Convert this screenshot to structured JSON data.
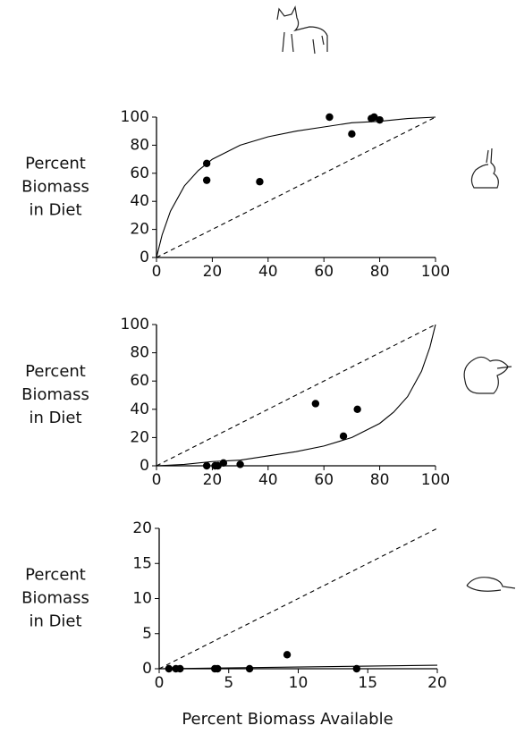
{
  "chart_data": [
    {
      "type": "scatter",
      "ylabel": [
        "Percent",
        "Biomass",
        "in Diet"
      ],
      "xlim": [
        0,
        100
      ],
      "ylim": [
        0,
        100
      ],
      "xticks": [
        0,
        20,
        40,
        60,
        80,
        100
      ],
      "yticks": [
        0,
        20,
        40,
        60,
        80,
        100
      ],
      "series": [
        {
          "style": "markers",
          "color": "#000",
          "x": [
            18,
            18,
            37,
            62,
            70,
            77,
            78,
            80
          ],
          "values": [
            67,
            55,
            54,
            100,
            88,
            99,
            100,
            98
          ]
        },
        {
          "style": "solid",
          "color": "#000",
          "x": [
            0,
            2,
            5,
            10,
            15,
            20,
            30,
            40,
            50,
            60,
            70,
            80,
            90,
            100
          ],
          "values": [
            0,
            16,
            33,
            51,
            62,
            70,
            80,
            86,
            90,
            93,
            96,
            97,
            99,
            100
          ]
        },
        {
          "style": "dashed",
          "color": "#000",
          "x": [
            0,
            100
          ],
          "values": [
            0,
            100
          ]
        }
      ]
    },
    {
      "type": "scatter",
      "ylabel": [
        "Percent",
        "Biomass",
        "in Diet"
      ],
      "xlim": [
        0,
        100
      ],
      "ylim": [
        0,
        100
      ],
      "xticks": [
        0,
        20,
        40,
        60,
        80,
        100
      ],
      "yticks": [
        0,
        20,
        40,
        60,
        80,
        100
      ],
      "series": [
        {
          "style": "markers",
          "color": "#000",
          "x": [
            18,
            21,
            22,
            24,
            30,
            57,
            67,
            72
          ],
          "values": [
            0,
            0,
            0,
            2,
            1,
            44,
            21,
            40
          ]
        },
        {
          "style": "solid",
          "color": "#000",
          "x": [
            0,
            10,
            20,
            30,
            40,
            50,
            60,
            70,
            80,
            85,
            90,
            95,
            98,
            100
          ],
          "values": [
            0,
            1,
            3,
            4,
            7,
            10,
            14,
            20,
            30,
            38,
            49,
            67,
            84,
            100
          ]
        },
        {
          "style": "dashed",
          "color": "#000",
          "x": [
            0,
            100
          ],
          "values": [
            0,
            100
          ]
        }
      ]
    },
    {
      "type": "scatter",
      "ylabel": [
        "Percent",
        "Biomass",
        "in Diet"
      ],
      "xlabel": "Percent Biomass Available",
      "xlim": [
        0,
        20
      ],
      "ylim": [
        0,
        20
      ],
      "xticks": [
        0,
        5,
        10,
        15,
        20
      ],
      "yticks": [
        0,
        5,
        10,
        15,
        20
      ],
      "series": [
        {
          "style": "markers",
          "color": "#000",
          "x": [
            0.7,
            1.2,
            1.5,
            4,
            4.2,
            6.5,
            9.2,
            14.2
          ],
          "values": [
            0,
            0,
            0,
            0,
            0,
            0,
            2,
            0
          ]
        },
        {
          "style": "solid",
          "color": "#000",
          "x": [
            0,
            20
          ],
          "values": [
            0,
            0.5
          ]
        },
        {
          "style": "dashed",
          "color": "#000",
          "x": [
            0,
            20
          ],
          "values": [
            0,
            20
          ]
        }
      ]
    }
  ]
}
